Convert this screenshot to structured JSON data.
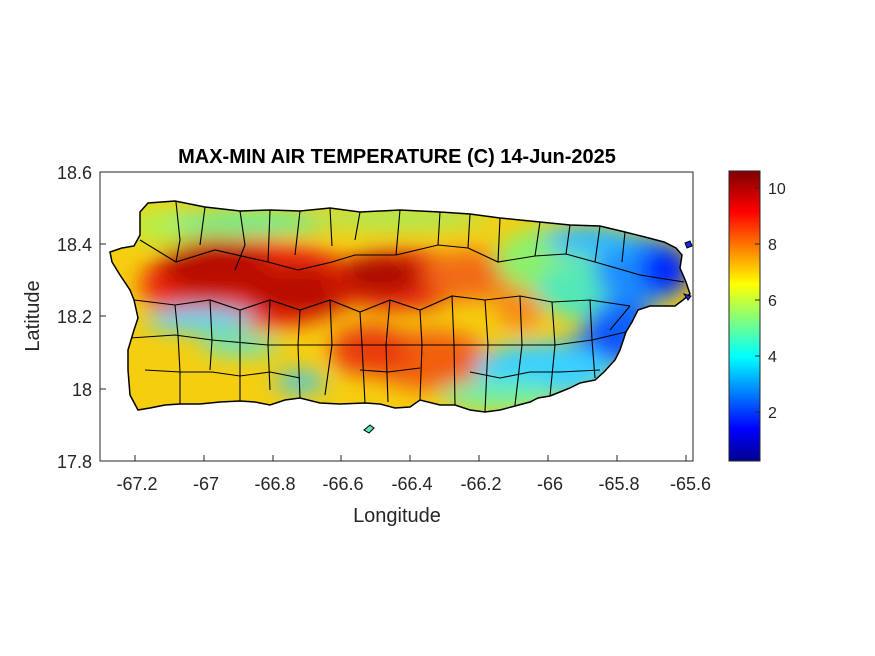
{
  "title": "MAX-MIN AIR TEMPERATURE (C) 14-Jun-2025",
  "xlabel": "Longitude",
  "ylabel": "Latitude",
  "x_ticks": [
    "-67.2",
    "-67",
    "-66.8",
    "-66.6",
    "-66.4",
    "-66.2",
    "-66",
    "-65.8",
    "-65.6"
  ],
  "y_ticks": [
    "18.6",
    "18.4",
    "18.2",
    "18",
    "17.8"
  ],
  "colorbar_ticks": [
    "10",
    "8",
    "6",
    "4",
    "2"
  ],
  "chart_data": {
    "type": "heatmap",
    "title": "MAX-MIN AIR TEMPERATURE (C) 14-Jun-2025",
    "xlabel": "Longitude",
    "ylabel": "Latitude",
    "xlim": [
      -67.3,
      -65.58
    ],
    "ylim": [
      17.8,
      18.6
    ],
    "x_tick_values": [
      -67.2,
      -67,
      -66.8,
      -66.6,
      -66.4,
      -66.2,
      -66,
      -65.8,
      -65.6
    ],
    "y_tick_values": [
      18.6,
      18.4,
      18.2,
      18,
      17.8
    ],
    "colorbar": {
      "colormap": "jet",
      "range": [
        0.2,
        10.7
      ],
      "tick_values": [
        10,
        8,
        6,
        4,
        2
      ],
      "colors": [
        "#00008f",
        "#0000ff",
        "#00ffff",
        "#ffff00",
        "#ff0000",
        "#800000"
      ]
    },
    "grid": false
  }
}
